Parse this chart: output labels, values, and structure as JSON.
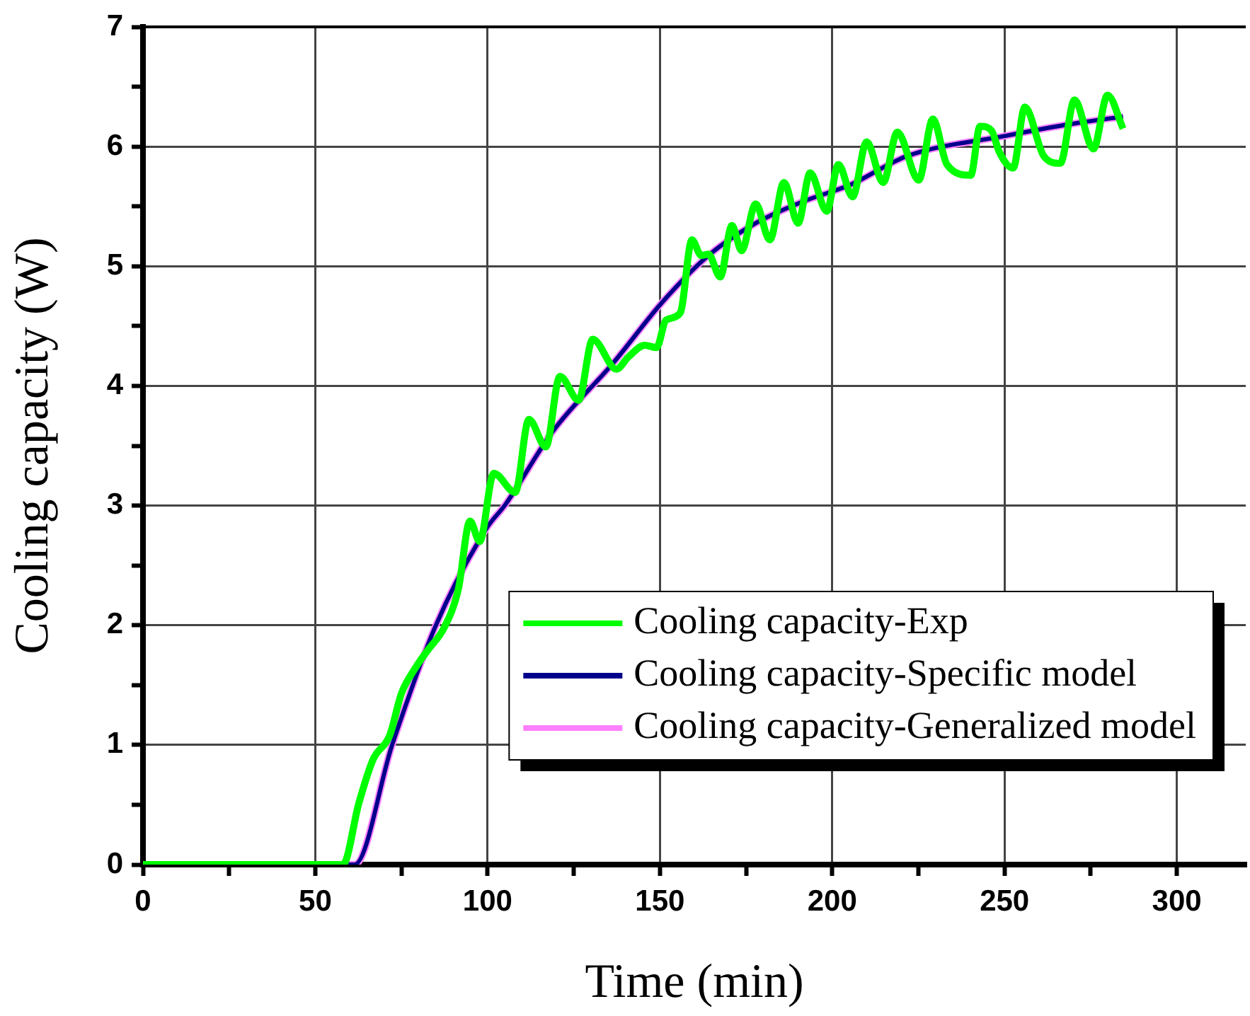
{
  "chart_data": {
    "type": "line",
    "xlabel": "Time (min)",
    "ylabel": "Cooling capacity (W)",
    "xlim": [
      0,
      320
    ],
    "ylim": [
      0,
      7
    ],
    "xticks": [
      0,
      {
        "value": 25,
        "label": null
      },
      50,
      {
        "value": 75,
        "label": null
      },
      100,
      {
        "value": 125,
        "label": null
      },
      150,
      {
        "value": 175,
        "label": null
      },
      200,
      {
        "value": 225,
        "label": null
      },
      250,
      {
        "value": 275,
        "label": null
      },
      300
    ],
    "yticks": [
      0,
      {
        "value": 0.5,
        "label": null
      },
      1,
      {
        "value": 1.5,
        "label": null
      },
      2,
      {
        "value": 2.5,
        "label": null
      },
      3,
      {
        "value": 3.5,
        "label": null
      },
      4,
      {
        "value": 4.5,
        "label": null
      },
      5,
      {
        "value": 5.5,
        "label": null
      },
      6,
      {
        "value": 6.5,
        "label": null
      },
      7
    ],
    "grid": true,
    "legend": "bottom right",
    "series": [
      {
        "name": "Cooling capacity-Exp",
        "color": "#00ff00",
        "x": [
          0,
          58,
          62.7,
          66.8,
          71.6,
          75,
          79.2,
          82.6,
          87.4,
          91.5,
          94.9,
          97.7,
          101.8,
          108,
          112,
          116.9,
          121,
          126.4,
          130.5,
          137.4,
          140.8,
          145.6,
          149,
          151.8,
          155.9,
          159.3,
          162,
          164.1,
          167.5,
          170.9,
          173.7,
          177.8,
          181.9,
          186,
          190.1,
          193.6,
          198.4,
          201.8,
          205.9,
          210,
          214.8,
          218.9,
          225.1,
          229.2,
          233.3,
          240.2,
          242.9,
          246.3,
          248.4,
          252.5,
          255.9,
          261.4,
          266.2,
          270.3,
          275.8,
          279.9,
          284.4
        ],
        "values": [
          0,
          0,
          0.52,
          0.88,
          1.08,
          1.43,
          1.65,
          1.79,
          1.98,
          2.3,
          2.87,
          2.7,
          3.27,
          3.11,
          3.72,
          3.49,
          4.08,
          3.88,
          4.39,
          4.14,
          4.24,
          4.34,
          4.32,
          4.55,
          4.61,
          5.22,
          5.09,
          5.1,
          4.91,
          5.34,
          5.13,
          5.52,
          5.22,
          5.7,
          5.36,
          5.78,
          5.46,
          5.85,
          5.58,
          6.04,
          5.7,
          6.12,
          5.72,
          6.23,
          5.85,
          5.76,
          6.17,
          6.13,
          5.96,
          5.82,
          6.33,
          5.92,
          5.86,
          6.39,
          5.98,
          6.43,
          6.15
        ]
      },
      {
        "name": "Cooling capacity-Specific model",
        "color": "#00008b",
        "x": [
          0,
          61.4,
          72.3,
          84.7,
          99.7,
          105.2,
          118.9,
          136.7,
          150.4,
          164.1,
          177.8,
          191.5,
          205.2,
          221.7,
          250.4,
          269.6,
          284.4
        ],
        "values": [
          0,
          0,
          1.0,
          1.98,
          2.81,
          3.01,
          3.62,
          4.2,
          4.69,
          5.09,
          5.36,
          5.54,
          5.68,
          5.92,
          6.09,
          6.19,
          6.25
        ]
      },
      {
        "name": "Cooling capacity-Generalized model",
        "color": "#ff80ff",
        "x": [
          0,
          61.4,
          72.3,
          84.7,
          99.7,
          105.2,
          118.9,
          136.7,
          150.4,
          164.1,
          177.8,
          191.5,
          205.2,
          221.7,
          250.4,
          269.6,
          284.4
        ],
        "values": [
          0,
          0,
          1.0,
          1.98,
          2.81,
          3.01,
          3.62,
          4.2,
          4.69,
          5.09,
          5.36,
          5.54,
          5.68,
          5.92,
          6.09,
          6.19,
          6.25
        ]
      }
    ]
  }
}
